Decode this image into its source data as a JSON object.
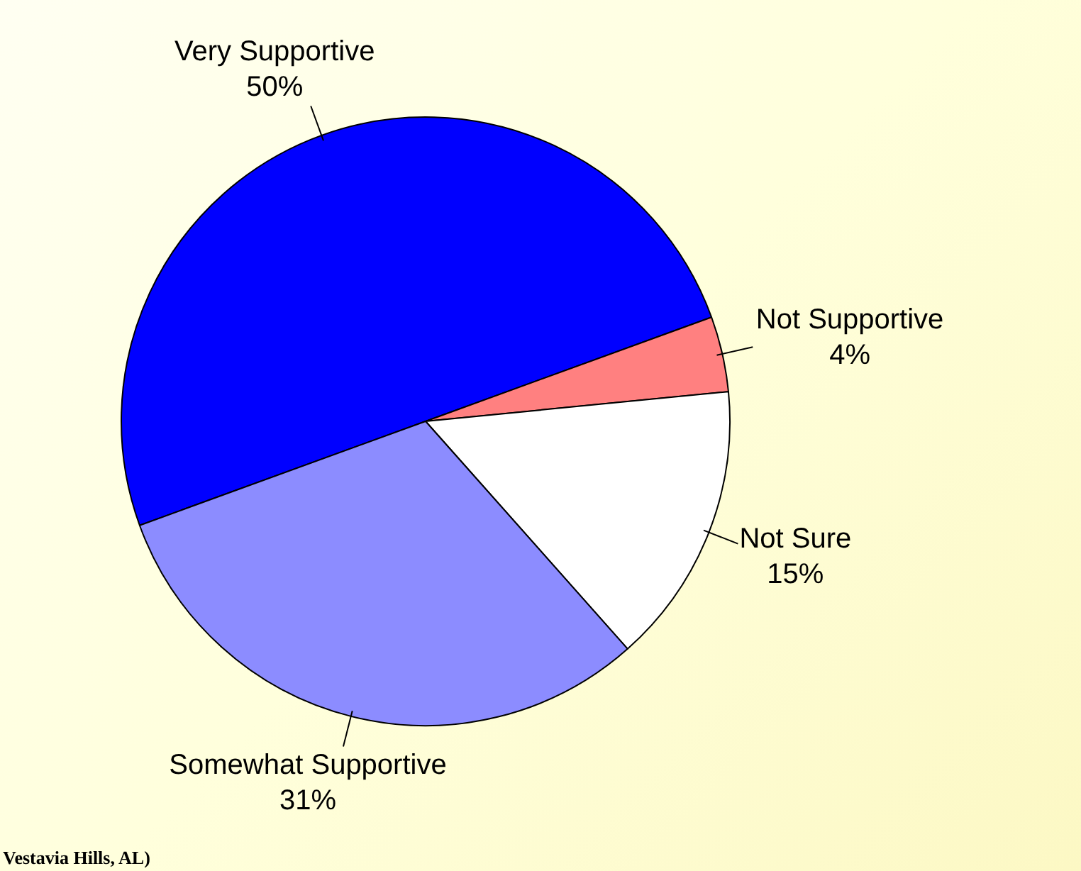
{
  "chart_data": {
    "type": "pie",
    "categories": [
      "Very Supportive",
      "Not Supportive",
      "Not Sure",
      "Somewhat Supportive"
    ],
    "values": [
      50,
      4,
      15,
      31
    ],
    "colors": [
      "#0000ff",
      "#ff8080",
      "#ffffff",
      "#8c8cff"
    ],
    "value_labels": [
      "50%",
      "4%",
      "15%",
      "31%"
    ],
    "annotations": [
      "Vestavia Hills, AL)"
    ]
  }
}
